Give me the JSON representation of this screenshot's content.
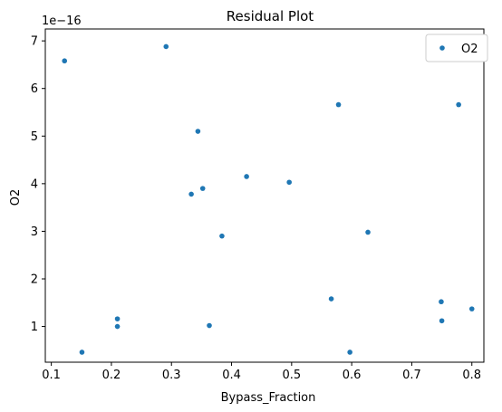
{
  "chart_data": {
    "type": "scatter",
    "title": "Residual Plot",
    "xlabel": "Bypass_Fraction",
    "ylabel": "O2",
    "y_offset_label": "1e−16",
    "xlim": [
      0.09,
      0.82
    ],
    "ylim": [
      0.25,
      7.25
    ],
    "x_ticks": [
      0.1,
      0.2,
      0.3,
      0.4,
      0.5,
      0.6,
      0.7,
      0.8
    ],
    "x_tick_labels": [
      "0.1",
      "0.2",
      "0.3",
      "0.4",
      "0.5",
      "0.6",
      "0.7",
      "0.8"
    ],
    "y_ticks": [
      1,
      2,
      3,
      4,
      5,
      6,
      7
    ],
    "y_tick_labels": [
      "1",
      "2",
      "3",
      "4",
      "5",
      "6",
      "7"
    ],
    "grid": false,
    "legend_position": "top-right",
    "point_color": "#1f77b4",
    "series": [
      {
        "name": "O2",
        "x": [
          0.122,
          0.151,
          0.21,
          0.21,
          0.291,
          0.333,
          0.344,
          0.352,
          0.363,
          0.384,
          0.425,
          0.496,
          0.566,
          0.578,
          0.597,
          0.627,
          0.749,
          0.75,
          0.778,
          0.8
        ],
        "y": [
          6.58,
          0.46,
          1.16,
          1.0,
          6.88,
          3.78,
          5.1,
          3.9,
          1.02,
          2.9,
          4.15,
          4.03,
          1.58,
          5.66,
          0.46,
          2.98,
          1.52,
          1.12,
          5.66,
          1.37
        ]
      }
    ]
  }
}
